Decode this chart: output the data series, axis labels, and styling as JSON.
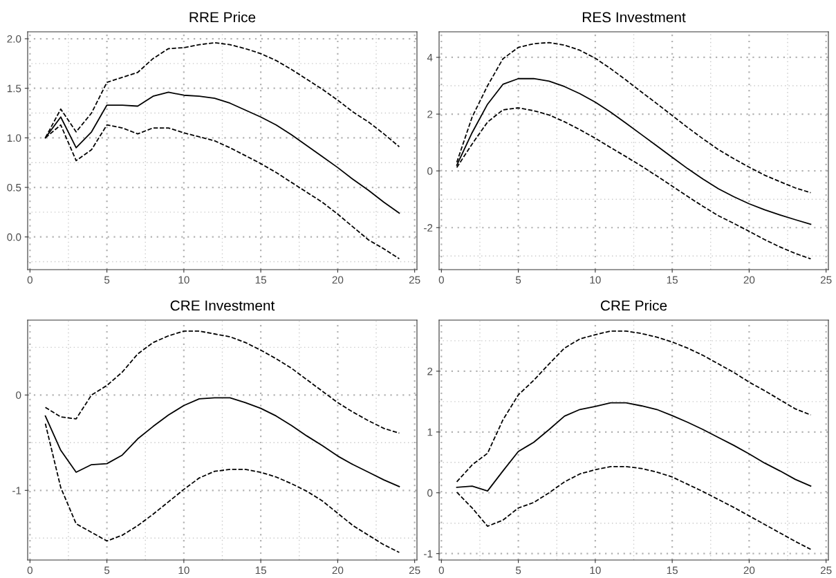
{
  "chart_data": [
    {
      "type": "line",
      "title": "RRE Price",
      "x": [
        1,
        2,
        3,
        4,
        5,
        6,
        7,
        8,
        9,
        10,
        11,
        12,
        13,
        14,
        15,
        16,
        17,
        18,
        19,
        20,
        21,
        22,
        23,
        24
      ],
      "xlim": [
        -0.15,
        25.15
      ],
      "xticks": [
        0,
        5,
        10,
        15,
        20,
        25
      ],
      "ylim": [
        -0.33,
        2.07
      ],
      "yticks": [
        {
          "value": 0,
          "label": "0.0"
        },
        0.5,
        {
          "value": 1,
          "label": "1.0"
        },
        1.5,
        {
          "value": 2,
          "label": "2.0"
        }
      ],
      "grid": true,
      "legend": false,
      "series": [
        {
          "color": "#000000",
          "line_style": "solid",
          "values": [
            1.0,
            1.21,
            0.9,
            1.06,
            1.33,
            1.33,
            1.32,
            1.42,
            1.46,
            1.43,
            1.42,
            1.4,
            1.35,
            1.28,
            1.21,
            1.13,
            1.03,
            0.92,
            0.81,
            0.7,
            0.58,
            0.47,
            0.35,
            0.24
          ]
        },
        {
          "color": "#000000",
          "line_style": "dashed",
          "values": [
            1.0,
            1.29,
            1.06,
            1.25,
            1.56,
            1.61,
            1.66,
            1.8,
            1.9,
            1.91,
            1.94,
            1.96,
            1.94,
            1.9,
            1.85,
            1.78,
            1.69,
            1.59,
            1.49,
            1.38,
            1.26,
            1.16,
            1.04,
            0.91
          ]
        },
        {
          "color": "#000000",
          "line_style": "dashed",
          "values": [
            1.0,
            1.13,
            0.77,
            0.88,
            1.13,
            1.1,
            1.04,
            1.1,
            1.1,
            1.05,
            1.01,
            0.97,
            0.9,
            0.82,
            0.74,
            0.65,
            0.55,
            0.45,
            0.35,
            0.23,
            0.1,
            -0.03,
            -0.12,
            -0.22
          ]
        }
      ]
    },
    {
      "type": "line",
      "title": "RES Investment",
      "x": [
        1,
        2,
        3,
        4,
        5,
        6,
        7,
        8,
        9,
        10,
        11,
        12,
        13,
        14,
        15,
        16,
        17,
        18,
        19,
        20,
        21,
        22,
        23,
        24
      ],
      "xlim": [
        -0.15,
        25.15
      ],
      "xticks": [
        0,
        5,
        10,
        15,
        20,
        25
      ],
      "ylim": [
        -3.48,
        4.9
      ],
      "yticks": [
        -2,
        0,
        2,
        4
      ],
      "grid": true,
      "legend": false,
      "series": [
        {
          "color": "#000000",
          "line_style": "solid",
          "values": [
            0.2,
            1.35,
            2.35,
            3.05,
            3.25,
            3.25,
            3.16,
            2.97,
            2.72,
            2.42,
            2.07,
            1.68,
            1.28,
            0.88,
            0.48,
            0.08,
            -0.29,
            -0.63,
            -0.91,
            -1.16,
            -1.37,
            -1.55,
            -1.72,
            -1.88
          ]
        },
        {
          "color": "#000000",
          "line_style": "dashed",
          "values": [
            0.3,
            1.9,
            3.0,
            3.95,
            4.35,
            4.48,
            4.52,
            4.43,
            4.25,
            3.97,
            3.6,
            3.2,
            2.78,
            2.37,
            1.95,
            1.53,
            1.13,
            0.75,
            0.43,
            0.13,
            -0.15,
            -0.38,
            -0.6,
            -0.77
          ]
        },
        {
          "color": "#000000",
          "line_style": "dashed",
          "values": [
            0.12,
            0.95,
            1.72,
            2.15,
            2.22,
            2.12,
            1.97,
            1.73,
            1.45,
            1.15,
            0.82,
            0.5,
            0.17,
            -0.18,
            -0.54,
            -0.9,
            -1.25,
            -1.58,
            -1.85,
            -2.13,
            -2.42,
            -2.68,
            -2.91,
            -3.1
          ]
        }
      ]
    },
    {
      "type": "line",
      "title": "CRE Investment",
      "x": [
        1,
        2,
        3,
        4,
        5,
        6,
        7,
        8,
        9,
        10,
        11,
        12,
        13,
        14,
        15,
        16,
        17,
        18,
        19,
        20,
        21,
        22,
        23,
        24
      ],
      "xlim": [
        -0.15,
        25.15
      ],
      "xticks": [
        0,
        5,
        10,
        15,
        20,
        25
      ],
      "ylim": [
        -1.73,
        0.785
      ],
      "yticks": [
        -1,
        0
      ],
      "grid": true,
      "legend": false,
      "series": [
        {
          "color": "#000000",
          "line_style": "solid",
          "values": [
            -0.22,
            -0.58,
            -0.81,
            -0.73,
            -0.72,
            -0.63,
            -0.46,
            -0.33,
            -0.21,
            -0.11,
            -0.04,
            -0.03,
            -0.03,
            -0.08,
            -0.14,
            -0.22,
            -0.32,
            -0.43,
            -0.53,
            -0.64,
            -0.73,
            -0.81,
            -0.89,
            -0.96
          ]
        },
        {
          "color": "#000000",
          "line_style": "dashed",
          "values": [
            -0.13,
            -0.23,
            -0.25,
            0.0,
            0.1,
            0.24,
            0.43,
            0.55,
            0.62,
            0.67,
            0.67,
            0.64,
            0.61,
            0.55,
            0.47,
            0.38,
            0.28,
            0.16,
            0.04,
            -0.08,
            -0.18,
            -0.27,
            -0.35,
            -0.4
          ]
        },
        {
          "color": "#000000",
          "line_style": "dashed",
          "values": [
            -0.3,
            -0.97,
            -1.35,
            -1.44,
            -1.53,
            -1.47,
            -1.37,
            -1.25,
            -1.12,
            -0.99,
            -0.87,
            -0.8,
            -0.78,
            -0.78,
            -0.81,
            -0.86,
            -0.93,
            -1.01,
            -1.11,
            -1.24,
            -1.37,
            -1.47,
            -1.57,
            -1.65
          ]
        }
      ]
    },
    {
      "type": "line",
      "title": "CRE Price",
      "x": [
        1,
        2,
        3,
        4,
        5,
        6,
        7,
        8,
        9,
        10,
        11,
        12,
        13,
        14,
        15,
        16,
        17,
        18,
        19,
        20,
        21,
        22,
        23,
        24
      ],
      "xlim": [
        -0.15,
        25.15
      ],
      "xticks": [
        0,
        5,
        10,
        15,
        20,
        25
      ],
      "ylim": [
        -1.106,
        2.84
      ],
      "yticks": [
        -1,
        0,
        1,
        2
      ],
      "grid": true,
      "legend": false,
      "series": [
        {
          "color": "#000000",
          "line_style": "solid",
          "values": [
            0.09,
            0.11,
            0.03,
            0.36,
            0.68,
            0.83,
            1.04,
            1.26,
            1.37,
            1.42,
            1.48,
            1.48,
            1.43,
            1.37,
            1.27,
            1.16,
            1.04,
            0.91,
            0.78,
            0.64,
            0.49,
            0.36,
            0.22,
            0.11
          ]
        },
        {
          "color": "#000000",
          "line_style": "dashed",
          "values": [
            0.18,
            0.46,
            0.65,
            1.2,
            1.61,
            1.85,
            2.12,
            2.38,
            2.53,
            2.6,
            2.66,
            2.66,
            2.62,
            2.56,
            2.48,
            2.38,
            2.26,
            2.12,
            1.98,
            1.82,
            1.68,
            1.53,
            1.38,
            1.28
          ]
        },
        {
          "color": "#000000",
          "line_style": "dashed",
          "values": [
            0.01,
            -0.25,
            -0.55,
            -0.45,
            -0.25,
            -0.16,
            0.0,
            0.18,
            0.31,
            0.38,
            0.43,
            0.43,
            0.4,
            0.34,
            0.26,
            0.14,
            0.02,
            -0.11,
            -0.24,
            -0.38,
            -0.52,
            -0.66,
            -0.8,
            -0.93
          ]
        }
      ]
    }
  ]
}
